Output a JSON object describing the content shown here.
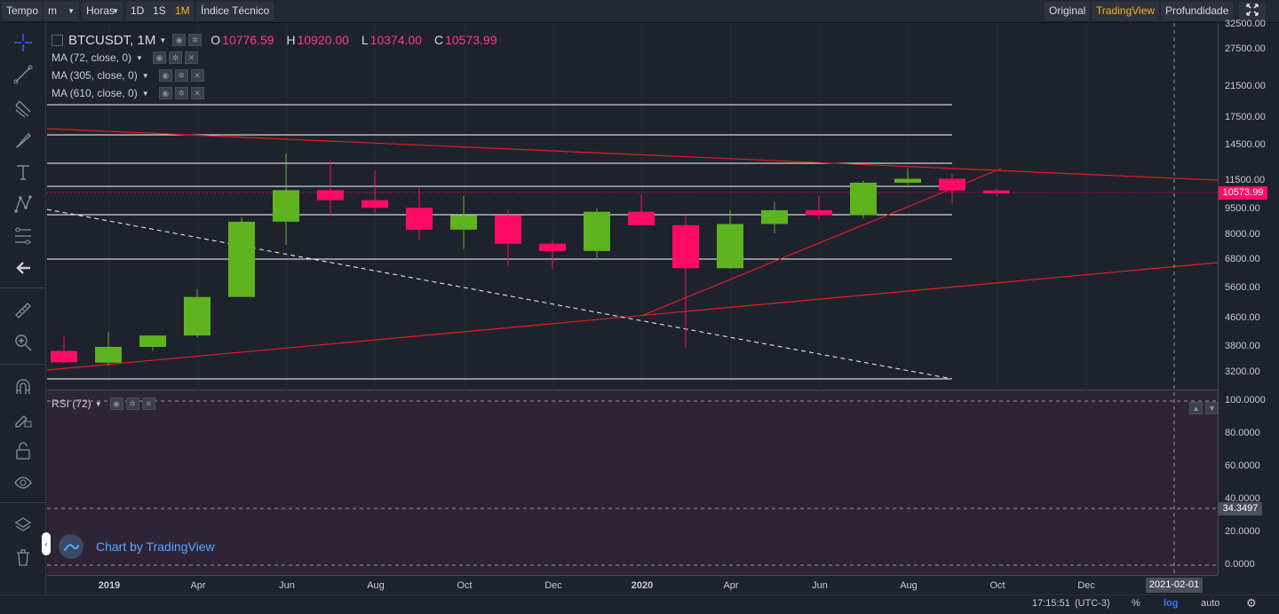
{
  "toolbar": {
    "tempo": "Tempo",
    "interval_unit": "m",
    "horas": "Horas",
    "btn_1d": "1D",
    "btn_1s": "1S",
    "btn_1m": "1M",
    "indicators": "Índice Técnico",
    "original": "Original",
    "tradingview": "TradingView",
    "depth": "Profundidade"
  },
  "legend": {
    "symbol": "BTCUSDT, 1M",
    "o_label": "O",
    "o_value": "10776.59",
    "h_label": "H",
    "h_value": "10920.00",
    "l_label": "L",
    "l_value": "10374.00",
    "c_label": "C",
    "c_value": "10573.99",
    "ma1": "MA (72, close, 0)",
    "ma2": "MA (305, close, 0)",
    "ma3": "MA (610, close, 0)",
    "rsi": "RSI (72)"
  },
  "price_axis": [
    "32500.00",
    "27500.00",
    "21500.00",
    "17500.00",
    "14500.00",
    "11500.00",
    "9500.00",
    "8000.00",
    "6800.00",
    "5600.00",
    "4600.00",
    "3800.00",
    "3200.00"
  ],
  "rsi_axis": [
    "100.0000",
    "80.0000",
    "60.0000",
    "40.0000",
    "20.0000",
    "0.0000"
  ],
  "current_price_tag": "10573.99",
  "rsi_value_tag": "34.3497",
  "time_axis": [
    "2019",
    "Apr",
    "Jun",
    "Aug",
    "Oct",
    "Dec",
    "2020",
    "Apr",
    "Jun",
    "Aug",
    "Oct",
    "Dec"
  ],
  "crosshair_date": "2021-02-01",
  "watermark": "Chart by TradingView",
  "footer": {
    "time": "17:15:51",
    "tz": "(UTC-3)",
    "percent": "%",
    "log": "log",
    "auto": "auto"
  },
  "colors": {
    "up": "#53b987",
    "down": "#ff0b64",
    "accent": "#f5b31c",
    "trendline": "#d32f2f"
  },
  "chart_data": {
    "type": "candlestick",
    "title": "BTCUSDT, 1M",
    "scale": "log",
    "months": [
      "2019-01",
      "2019-02",
      "2019-03",
      "2019-04",
      "2019-05",
      "2019-06",
      "2019-07",
      "2019-08",
      "2019-09",
      "2019-10",
      "2019-11",
      "2019-12",
      "2020-01",
      "2020-02",
      "2020-03",
      "2020-04",
      "2020-05",
      "2020-06",
      "2020-07",
      "2020-08",
      "2020-09",
      "2020-10"
    ],
    "open": [
      3700,
      3420,
      3800,
      4100,
      5300,
      8750,
      10800,
      10100,
      9600,
      8300,
      9150,
      7560,
      7200,
      9350,
      8550,
      6420,
      8620,
      9450,
      9140,
      11350,
      11650,
      10776.59
    ],
    "high": [
      4100,
      4200,
      4100,
      5600,
      9000,
      13800,
      13200,
      12300,
      10950,
      10400,
      9500,
      7750,
      9600,
      10500,
      9150,
      9450,
      10000,
      10400,
      11500,
      12500,
      12050,
      10920
    ],
    "low": [
      3400,
      3350,
      3700,
      4050,
      5300,
      7500,
      9080,
      9300,
      7750,
      7300,
      6500,
      6400,
      6900,
      8600,
      3780,
      6400,
      8100,
      8900,
      8950,
      11000,
      9900,
      10374
    ],
    "close": [
      3430,
      3800,
      4100,
      5300,
      8750,
      10800,
      10100,
      9600,
      8300,
      9150,
      7560,
      7200,
      9350,
      8550,
      6420,
      8620,
      9450,
      9140,
      11350,
      11650,
      10776.59,
      10573.99
    ],
    "ylim": [
      3000,
      32500
    ],
    "rsi_ylim": [
      0,
      100
    ]
  }
}
